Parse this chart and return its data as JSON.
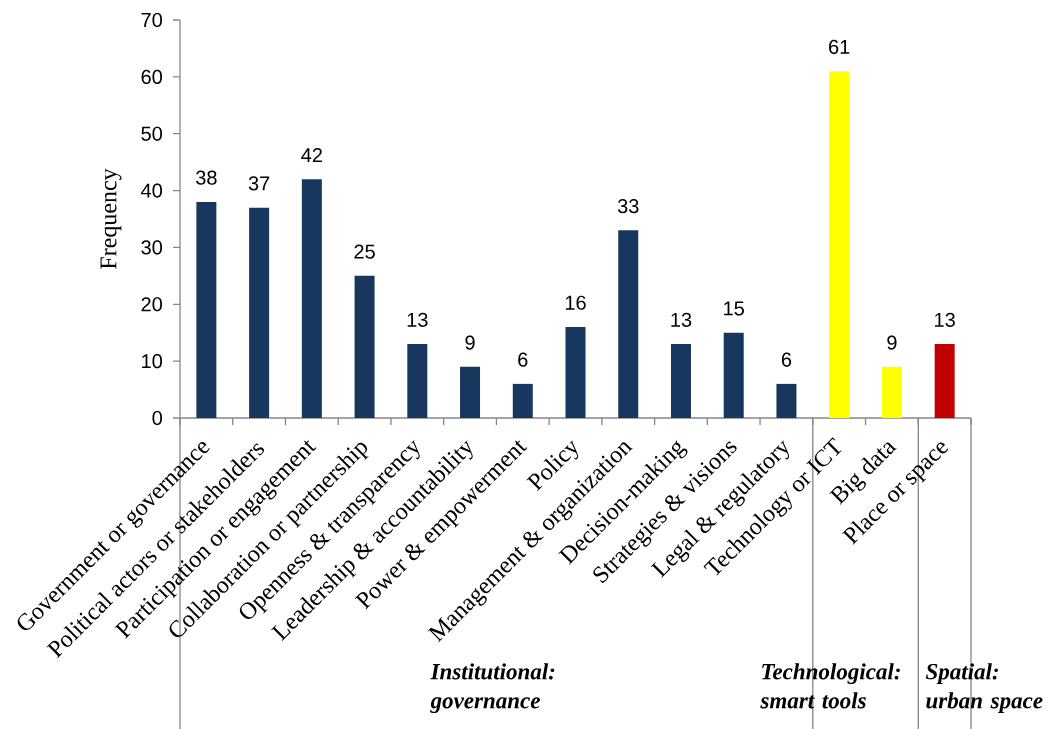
{
  "chart_data": {
    "type": "bar",
    "ylabel": "Frequency",
    "categories": [
      "Government or governance",
      "Political actors or stakeholders",
      "Participation or engagement",
      "Collaboration or partnership",
      "Openness & transparency",
      "Leadership & accountability",
      "Power & empowerment",
      "Policy",
      "Management & organization",
      "Decision-making",
      "Strategies & visions",
      "Legal & regulatory",
      "Technology or ICT",
      "Big data",
      "Place or space"
    ],
    "values": [
      38,
      37,
      42,
      25,
      13,
      9,
      6,
      16,
      33,
      13,
      15,
      6,
      61,
      9,
      13
    ],
    "colors": [
      "#17375e",
      "#17375e",
      "#17375e",
      "#17375e",
      "#17375e",
      "#17375e",
      "#17375e",
      "#17375e",
      "#17375e",
      "#17375e",
      "#17375e",
      "#17375e",
      "#ffff00",
      "#ffff00",
      "#c00000"
    ],
    "ylim": [
      0,
      70
    ],
    "yticks": [
      0,
      10,
      20,
      30,
      40,
      50,
      60,
      70
    ],
    "data_labels": true,
    "annotations": [
      "Institutional: governance",
      "Technological: smart tools",
      "Spatial: urban space"
    ]
  }
}
